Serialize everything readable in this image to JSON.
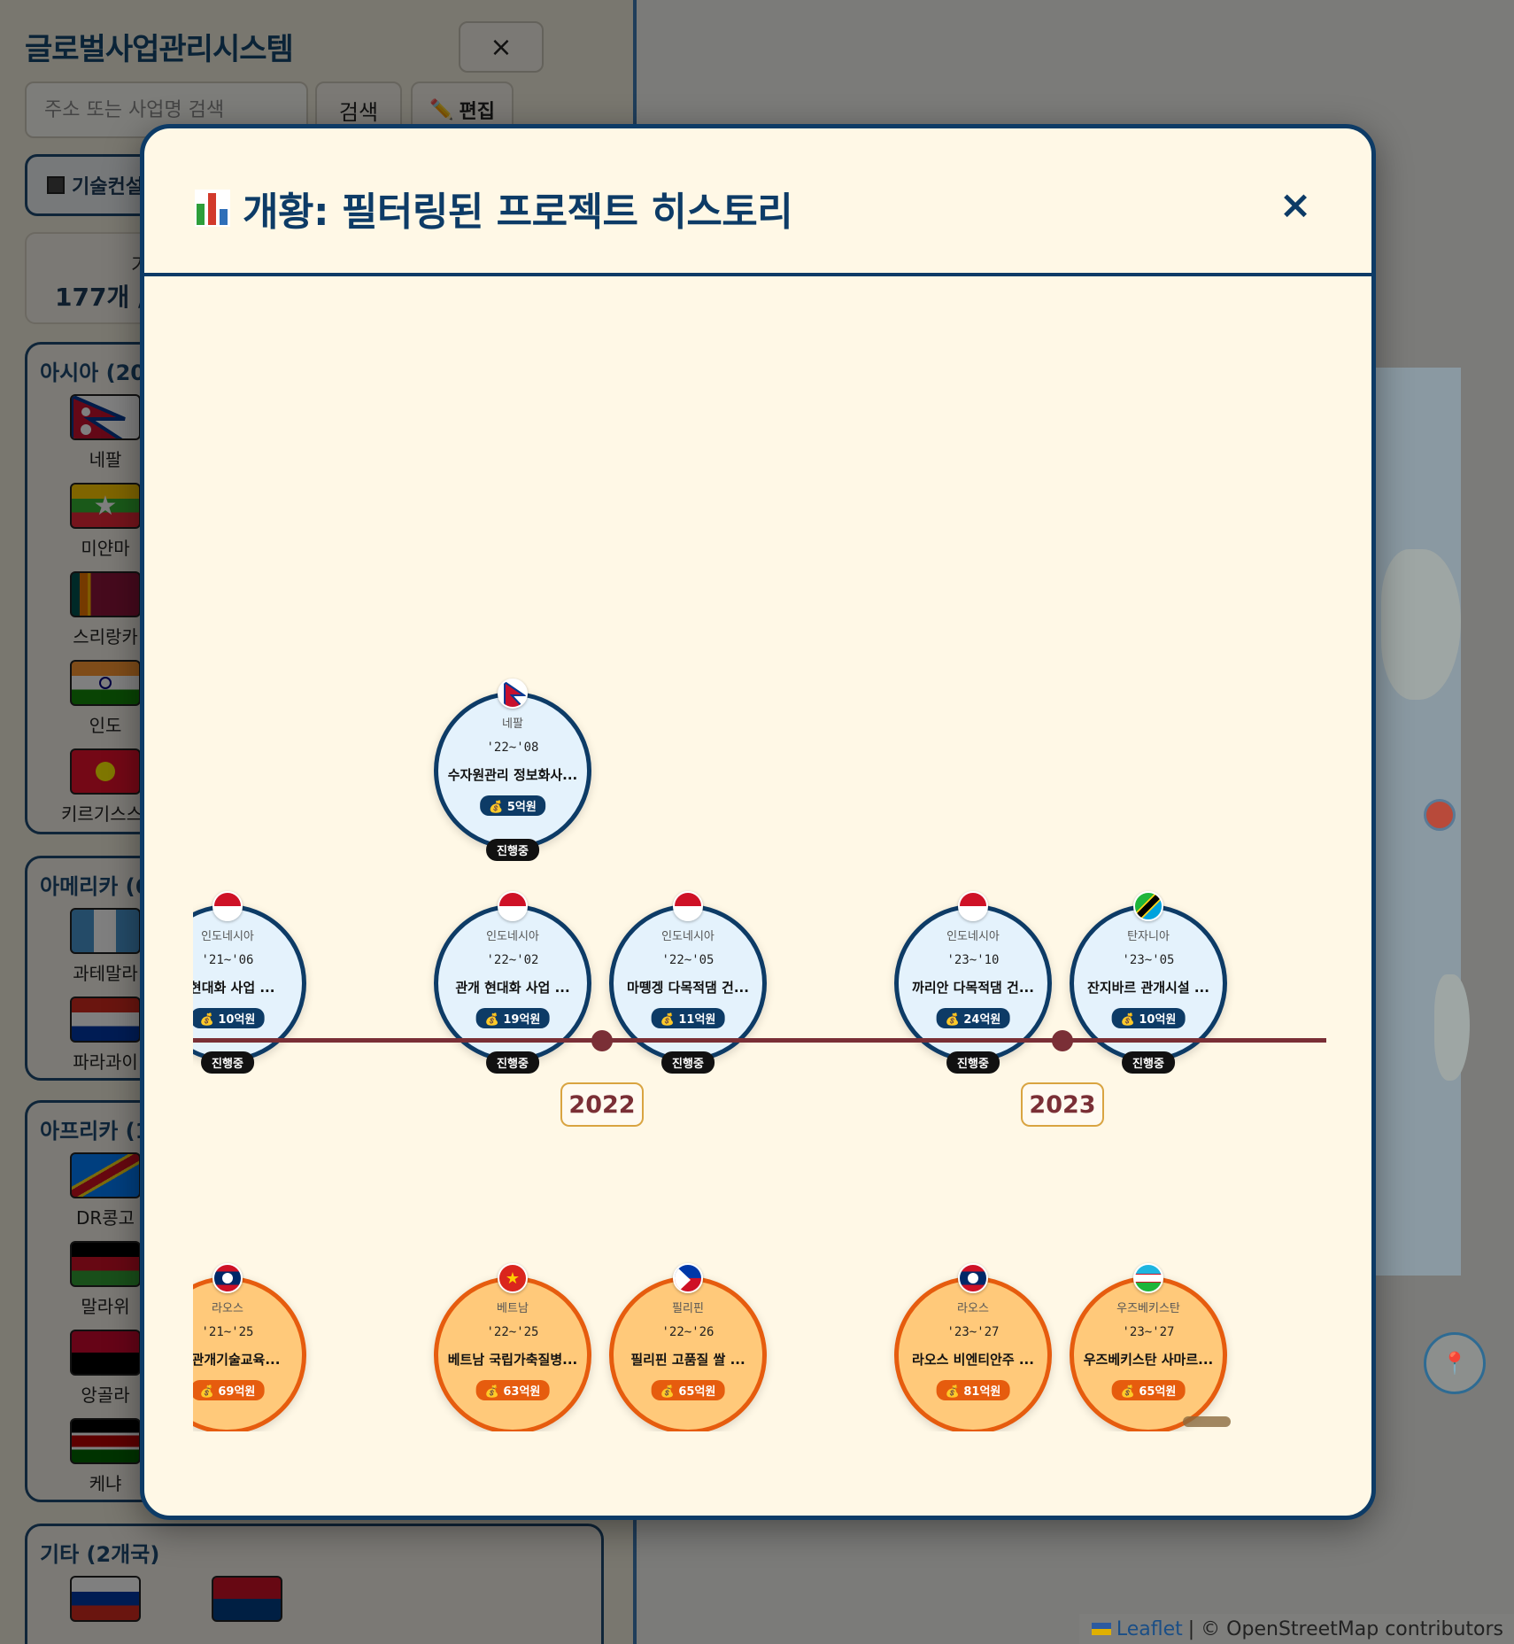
{
  "app": {
    "title": "글로벌사업관리시스템",
    "close_label": "×",
    "search_placeholder": "주소 또는 사업명 검색",
    "search_label": "검색",
    "edit_label": "편집",
    "filter_label": "기술컨설",
    "stats_line1": "기",
    "stats_line2": "177개 /"
  },
  "regions": [
    {
      "title": "아시아 (20",
      "countries": [
        "네팔",
        "미얀마",
        "스리랑카",
        "인도",
        "키르기스스탄"
      ]
    },
    {
      "title": "아메리카 (6",
      "countries": [
        "과테말라",
        "파라과이"
      ]
    },
    {
      "title": "아프리카 (1",
      "countries": [
        "DR콩고",
        "말라위",
        "앙골라",
        "케냐"
      ]
    },
    {
      "title": "기타 (2개국)",
      "countries": []
    }
  ],
  "map": {
    "attribution_leaflet": "Leaflet",
    "attribution_rest": "| © OpenStreetMap contributors"
  },
  "modal": {
    "title": "개황: 필터링된 프로젝트 히스토리",
    "close_label": "×"
  },
  "timeline": {
    "years": [
      "2022",
      "2023"
    ],
    "ongoing_projects": [
      {
        "country": "네팔",
        "period": "'22~'08",
        "name": "수자원관리 정보화사...",
        "budget": "5억원",
        "status": "진행중"
      },
      {
        "country": "인도네시아",
        "period": "'21~'06",
        "name": "l 현대화 사업 ...",
        "budget": "10억원",
        "status": "진행중"
      },
      {
        "country": "인도네시아",
        "period": "'22~'02",
        "name": "관개 현대화 사업 ...",
        "budget": "19억원",
        "status": "진행중"
      },
      {
        "country": "인도네시아",
        "period": "'22~'05",
        "name": "마뗑겡 다목적댐 건...",
        "budget": "11억원",
        "status": "진행중"
      },
      {
        "country": "인도네시아",
        "period": "'23~'10",
        "name": "까리안 다목적댐 건...",
        "budget": "24억원",
        "status": "진행중"
      },
      {
        "country": "탄자니아",
        "period": "'23~'05",
        "name": "잔지바르 관개시설 ...",
        "budget": "10억원",
        "status": "진행중"
      }
    ],
    "other_projects": [
      {
        "country": "라오스",
        "period": "'21~'25",
        "name": "스 관개기술교육...",
        "budget": "69억원"
      },
      {
        "country": "베트남",
        "period": "'22~'25",
        "name": "베트남 국립가축질병...",
        "budget": "63억원"
      },
      {
        "country": "필리핀",
        "period": "'22~'26",
        "name": "필리핀 고품질 쌀 ...",
        "budget": "65억원"
      },
      {
        "country": "라오스",
        "period": "'23~'27",
        "name": "라오스 비엔티안주 ...",
        "budget": "81억원"
      },
      {
        "country": "우즈베키스탄",
        "period": "'23~'27",
        "name": "우즈베키스탄 사마르...",
        "budget": "65억원"
      }
    ]
  },
  "icons": {
    "edit": "pencil-icon",
    "filter": "building-icon",
    "modal_title": "bar-chart-icon",
    "budget": "money-bag-icon",
    "location": "map-pin-icon"
  },
  "colors": {
    "primary": "#0d3b66",
    "timeline_axis": "#7a2f36",
    "ongoing_fill": "#e4f2fc",
    "other_border": "#e65c0e",
    "other_fill": "#ffc97a",
    "modal_bg": "#fff8e6"
  }
}
